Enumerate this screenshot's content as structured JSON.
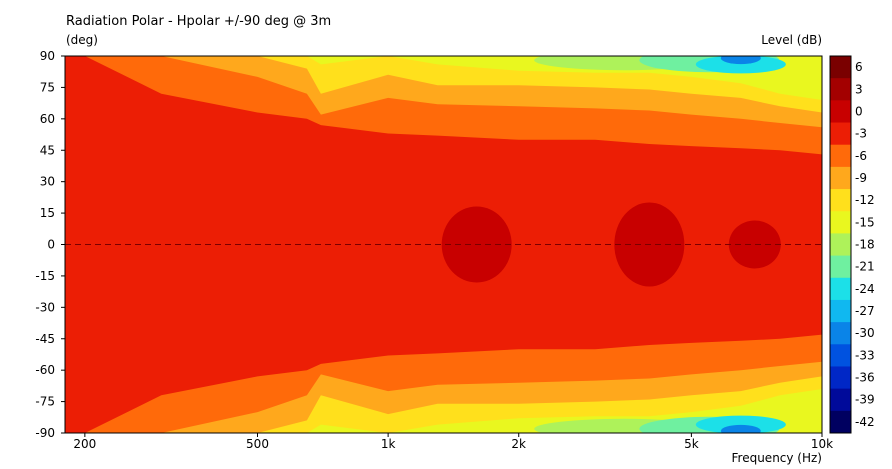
{
  "chart_data": {
    "type": "heatmap",
    "title": "Radiation Polar - Hpolar +/-90 deg @ 3m",
    "ylabel": "(deg)",
    "xlabel": "Frequency  (Hz)",
    "colorbar_label": "Level  (dB)",
    "x_scale": "log",
    "xlim": [
      180,
      10000
    ],
    "ylim": [
      -90,
      90
    ],
    "x_ticks": [
      {
        "value": 200,
        "label": "200"
      },
      {
        "value": 500,
        "label": "500"
      },
      {
        "value": 1000,
        "label": "1k"
      },
      {
        "value": 2000,
        "label": "2k"
      },
      {
        "value": 5000,
        "label": "5k"
      },
      {
        "value": 10000,
        "label": "10k"
      }
    ],
    "y_ticks": [
      {
        "value": 90,
        "label": "90"
      },
      {
        "value": 75,
        "label": "75"
      },
      {
        "value": 60,
        "label": "60"
      },
      {
        "value": 45,
        "label": "45"
      },
      {
        "value": 30,
        "label": "30"
      },
      {
        "value": 15,
        "label": "15"
      },
      {
        "value": 0,
        "label": "0"
      },
      {
        "value": -15,
        "label": "-15"
      },
      {
        "value": -30,
        "label": "-30"
      },
      {
        "value": -45,
        "label": "-45"
      },
      {
        "value": -60,
        "label": "-60"
      },
      {
        "value": -75,
        "label": "-75"
      },
      {
        "value": -90,
        "label": "-90"
      }
    ],
    "colorbar": {
      "levels": [
        {
          "label": "6",
          "color": "#7a0000"
        },
        {
          "label": "3",
          "color": "#a30000"
        },
        {
          "label": "0",
          "color": "#c80000"
        },
        {
          "label": "-3",
          "color": "#ec1e05"
        },
        {
          "label": "-6",
          "color": "#ff6a0a"
        },
        {
          "label": "-9",
          "color": "#ffa81c"
        },
        {
          "label": "-12",
          "color": "#ffe01c"
        },
        {
          "label": "-15",
          "color": "#e9f71f"
        },
        {
          "label": "-18",
          "color": "#aef25a"
        },
        {
          "label": "-21",
          "color": "#6ff0a0"
        },
        {
          "label": "-24",
          "color": "#1ce0e8"
        },
        {
          "label": "-27",
          "color": "#10b8f0"
        },
        {
          "label": "-30",
          "color": "#0a84e8"
        },
        {
          "label": "-33",
          "color": "#0052e0"
        },
        {
          "label": "-36",
          "color": "#0027c6"
        },
        {
          "label": "-39",
          "color": "#000a9a"
        },
        {
          "label": "-42",
          "color": "#000060"
        }
      ]
    },
    "contours_db_by_frequency": {
      "frequency_hz": [
        200,
        300,
        500,
        650,
        700,
        1000,
        1300,
        2000,
        3000,
        4000,
        5000,
        6500,
        8000,
        10000
      ],
      "neg3dB_half_angle_deg": [
        90,
        72,
        63,
        60,
        57,
        53,
        52,
        50,
        50,
        48,
        47,
        46,
        45,
        43
      ],
      "neg6dB_half_angle_deg": [
        90,
        90,
        80,
        72,
        62,
        70,
        67,
        66,
        65,
        64,
        62,
        60,
        58,
        56
      ],
      "neg9dB_half_angle_deg": [
        90,
        90,
        90,
        84,
        72,
        81,
        76,
        76,
        75,
        74,
        72,
        70,
        66,
        63
      ],
      "neg12dB_half_angle_deg": [
        90,
        90,
        90,
        90,
        86,
        90,
        86,
        83,
        82,
        82,
        80,
        77,
        72,
        69
      ]
    }
  }
}
